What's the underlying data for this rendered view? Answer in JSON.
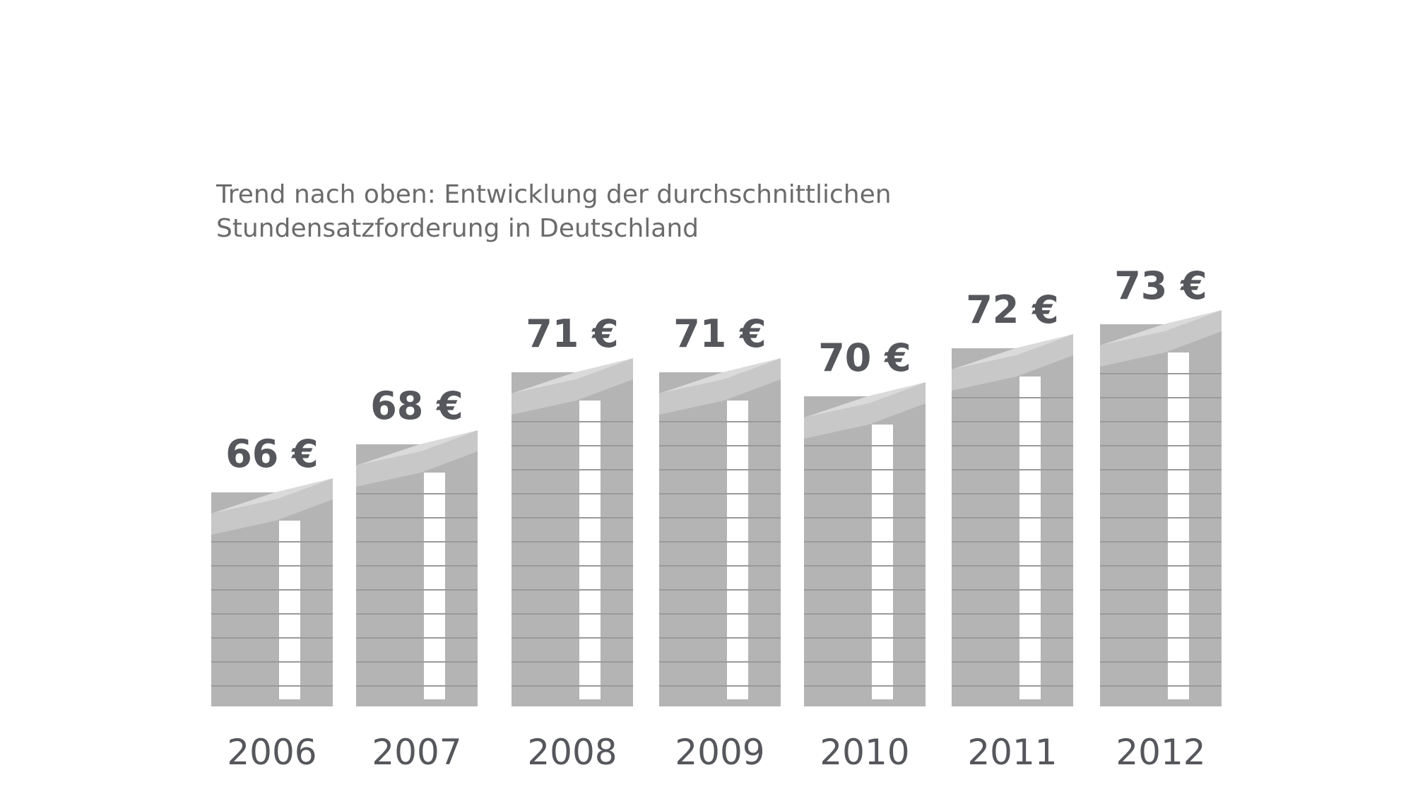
{
  "chart_data": {
    "type": "bar",
    "title": "Trend nach oben: Entwicklung der durchschnittlichen Stundensatzforderung in Deutschland",
    "categories": [
      "2006",
      "2007",
      "2008",
      "2009",
      "2010",
      "2011",
      "2012"
    ],
    "values": [
      66,
      68,
      71,
      71,
      70,
      72,
      73
    ],
    "value_labels": [
      "66 €",
      "68 €",
      "71 €",
      "71 €",
      "70 €",
      "72 €",
      "73 €"
    ],
    "color": "#b4b4b4"
  }
}
